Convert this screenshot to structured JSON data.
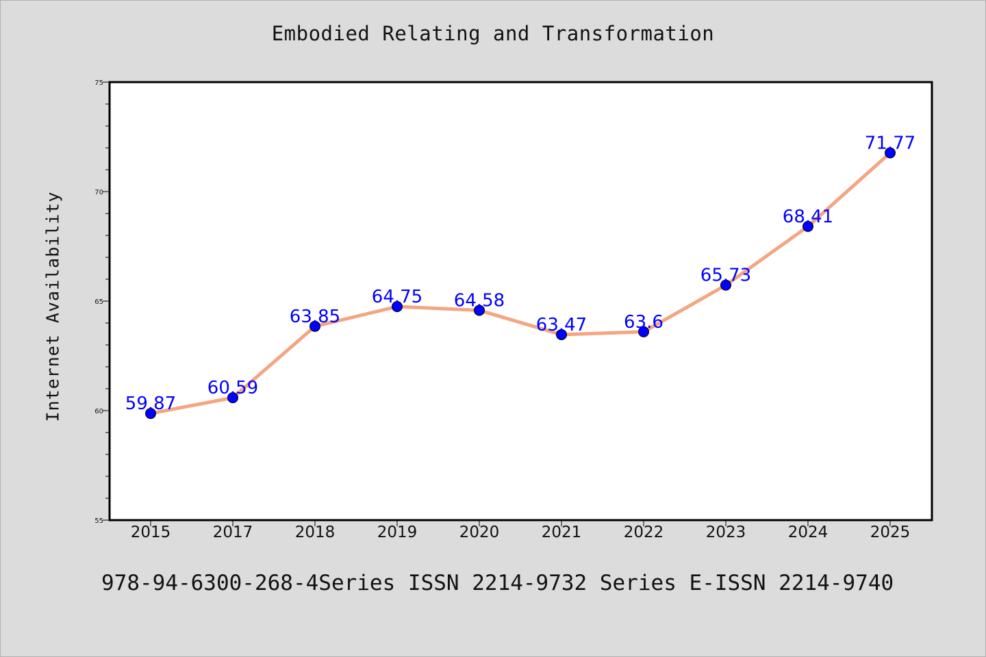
{
  "chart_data": {
    "type": "line",
    "title": "Embodied Relating and Transformation",
    "ylabel": "Internet Availability",
    "xlabel": "",
    "categories": [
      "2015",
      "2017",
      "2018",
      "2019",
      "2020",
      "2021",
      "2022",
      "2023",
      "2024",
      "2025"
    ],
    "values": [
      59.87,
      60.59,
      63.85,
      64.75,
      64.58,
      63.47,
      63.6,
      65.73,
      68.41,
      71.77
    ],
    "data_labels": [
      "59.87",
      "60.59",
      "63.85",
      "64.75",
      "64.58",
      "63.47",
      "63.6",
      "65.73",
      "68.41",
      "71.77"
    ],
    "ylim": [
      55,
      75
    ],
    "y_ticks": [
      55,
      60,
      65,
      70,
      75
    ],
    "grid": false,
    "colors": {
      "line": "#f4a582",
      "marker": "#0000ff",
      "label": "#0000ff",
      "background": "#dcdcdc",
      "plot_background": "#ffffff"
    }
  },
  "footer": {
    "text": "978-94-6300-268-4Series ISSN 2214-9732 Series E-ISSN 2214-9740"
  }
}
